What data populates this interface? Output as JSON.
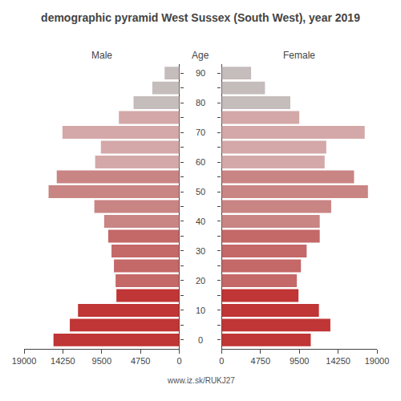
{
  "chart_data": {
    "type": "bar",
    "orientation": "horizontal",
    "title": "demographic pyramid West Sussex (South West), year 2019",
    "ylabel": "Age",
    "footer": "www.iz.sk/RUKJ27",
    "categories": [
      90,
      85,
      80,
      75,
      70,
      65,
      60,
      55,
      50,
      45,
      40,
      35,
      30,
      25,
      20,
      15,
      10,
      5,
      0
    ],
    "series": [
      {
        "name": "Male",
        "values": [
          1800,
          3300,
          5600,
          7400,
          14300,
          9600,
          10300,
          15000,
          16000,
          10400,
          9200,
          8700,
          8300,
          8000,
          7800,
          7700,
          12400,
          13400,
          15400
        ]
      },
      {
        "name": "Female",
        "values": [
          3600,
          5300,
          8400,
          9500,
          17500,
          12800,
          12600,
          16200,
          17900,
          13400,
          12000,
          12000,
          10400,
          9700,
          9200,
          9400,
          11900,
          13300,
          10900
        ]
      }
    ],
    "colors": [
      "#c5bcbc",
      "#c5bcbc",
      "#c5bcbc",
      "#d4a8a8",
      "#d4a8a8",
      "#d4a8a8",
      "#d4a8a8",
      "#c98484",
      "#c98484",
      "#c98484",
      "#c98484",
      "#c46868",
      "#c46868",
      "#c46868",
      "#c46868",
      "#c03535",
      "#c03535",
      "#c03535",
      "#c03535"
    ],
    "xlim": [
      0,
      19000
    ],
    "xticks": [
      0,
      4750,
      9500,
      14250,
      19000
    ],
    "ylim": [
      -3,
      93
    ],
    "yticks": [
      0,
      10,
      20,
      30,
      40,
      50,
      60,
      70,
      80,
      90
    ],
    "grid": false
  }
}
